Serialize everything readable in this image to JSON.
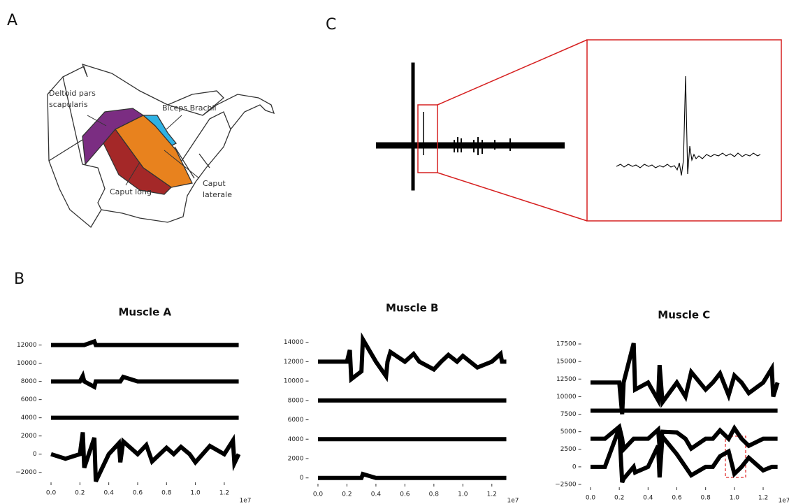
{
  "panel_labels": [
    "A",
    "B",
    "C"
  ],
  "diagram": {
    "labels": [
      {
        "lines": [
          "Deltoid pars",
          "scapularis"
        ]
      },
      {
        "lines": [
          "Biceps Brachii"
        ]
      },
      {
        "lines": [
          "Caput long"
        ]
      },
      {
        "lines": [
          "Caput",
          "laterale"
        ]
      }
    ]
  },
  "chart_data": [
    {
      "type": "line",
      "title": "Muscle A",
      "x": [
        0.0,
        0.1,
        0.2,
        0.22,
        0.23,
        0.3,
        0.31,
        0.4,
        0.47,
        0.48,
        0.5,
        0.6,
        0.66,
        0.7,
        0.8,
        0.85,
        0.9,
        0.96,
        1.0,
        1.05,
        1.1,
        1.2,
        1.26,
        1.27,
        1.3
      ],
      "xlim": [
        -0.065,
        1.365
      ],
      "xticks": [
        {
          "value": 0,
          "label": "0.0"
        },
        0.2,
        0.4,
        0.6,
        0.8,
        {
          "value": 1,
          "label": "1.0"
        },
        1.2
      ],
      "x_offset_label": "1e7",
      "ylim": [
        -3100,
        13200
      ],
      "yticks": [
        {
          "value": -2000,
          "label": "−2000"
        },
        0,
        2000,
        4000,
        6000,
        8000,
        10000,
        12000
      ],
      "series": [
        {
          "color": "#000000",
          "values": [
            12000,
            12000,
            12000,
            12000,
            12000,
            12400,
            12000,
            12000,
            12000,
            12000,
            12000,
            12000,
            12000,
            12000,
            12000,
            12000,
            12000,
            12000,
            12000,
            12000,
            12000,
            12000,
            12000,
            12000,
            12000
          ]
        },
        {
          "color": "#000000",
          "values": [
            8000,
            8000,
            8000,
            8600,
            8000,
            7400,
            8000,
            8000,
            8000,
            8000,
            8500,
            8000,
            8000,
            8000,
            8000,
            8000,
            8000,
            8000,
            8000,
            8000,
            8000,
            8000,
            8000,
            8000,
            8000
          ]
        },
        {
          "color": "#000000",
          "values": [
            4000,
            4000,
            4000,
            4000,
            4000,
            4000,
            4000,
            4000,
            4000,
            4000,
            4000,
            4000,
            4000,
            4000,
            4000,
            4000,
            4000,
            4000,
            4000,
            4000,
            4000,
            4000,
            4000,
            4000,
            4000
          ]
        },
        {
          "color": "#000000",
          "values": [
            0,
            -500,
            0,
            2400,
            -1500,
            1800,
            -3000,
            0,
            1200,
            -900,
            1400,
            0,
            1000,
            -800,
            700,
            0,
            800,
            0,
            -900,
            0,
            900,
            0,
            1500,
            -1000,
            0
          ]
        }
      ]
    },
    {
      "type": "line",
      "title": "Muscle B",
      "x": [
        0.0,
        0.1,
        0.2,
        0.22,
        0.23,
        0.3,
        0.31,
        0.4,
        0.47,
        0.48,
        0.5,
        0.6,
        0.66,
        0.7,
        0.8,
        0.85,
        0.9,
        0.96,
        1.0,
        1.05,
        1.1,
        1.2,
        1.26,
        1.27,
        1.3
      ],
      "xlim": [
        -0.065,
        1.365
      ],
      "xticks": [
        {
          "value": 0,
          "label": "0.0"
        },
        0.2,
        0.4,
        0.6,
        0.8,
        {
          "value": 1,
          "label": "1.0"
        },
        1.2
      ],
      "x_offset_label": "1e7",
      "ylim": [
        -600,
        14700
      ],
      "yticks": [
        0,
        2000,
        4000,
        6000,
        8000,
        10000,
        12000,
        14000
      ],
      "series": [
        {
          "color": "#000000",
          "values": [
            12000,
            12000,
            12000,
            13200,
            10200,
            11000,
            14300,
            12000,
            10500,
            12000,
            13000,
            12000,
            12800,
            12000,
            11200,
            12000,
            12700,
            12000,
            12600,
            12000,
            11400,
            12000,
            12800,
            12000,
            12000
          ]
        },
        {
          "color": "#000000",
          "values": [
            8000,
            8000,
            8000,
            8000,
            8000,
            8000,
            8000,
            8000,
            8000,
            8000,
            8000,
            8000,
            8000,
            8000,
            8000,
            8000,
            8000,
            8000,
            8000,
            8000,
            8000,
            8000,
            8000,
            8000,
            8000
          ]
        },
        {
          "color": "#000000",
          "values": [
            4000,
            4000,
            4000,
            4000,
            4000,
            4000,
            4000,
            4000,
            4000,
            4000,
            4000,
            4000,
            4000,
            4000,
            4000,
            4000,
            4000,
            4000,
            4000,
            4000,
            4000,
            4000,
            4000,
            4000,
            4000
          ]
        },
        {
          "color": "#000000",
          "values": [
            0,
            0,
            0,
            0,
            0,
            0,
            400,
            0,
            0,
            0,
            0,
            0,
            0,
            0,
            0,
            0,
            0,
            0,
            0,
            0,
            0,
            0,
            0,
            0,
            0
          ]
        }
      ]
    },
    {
      "type": "line",
      "title": "Muscle C",
      "x": [
        0.0,
        0.1,
        0.2,
        0.22,
        0.23,
        0.3,
        0.31,
        0.4,
        0.47,
        0.48,
        0.5,
        0.6,
        0.66,
        0.7,
        0.8,
        0.85,
        0.9,
        0.96,
        1.0,
        1.05,
        1.1,
        1.2,
        1.26,
        1.27,
        1.3
      ],
      "xlim": [
        -0.065,
        1.365
      ],
      "xticks": [
        {
          "value": 0,
          "label": "0.0"
        },
        0.2,
        0.4,
        0.6,
        0.8,
        {
          "value": 1,
          "label": "1.0"
        },
        1.2
      ],
      "x_offset_label": "1e7",
      "ylim": [
        -2900,
        18300
      ],
      "yticks": [
        {
          "value": -2500,
          "label": "−2500"
        },
        0,
        2500,
        5000,
        7500,
        10000,
        12500,
        15000,
        17500
      ],
      "series": [
        {
          "color": "#000000",
          "values": [
            12000,
            12000,
            12000,
            7500,
            12000,
            17600,
            11000,
            12000,
            9500,
            14500,
            9200,
            12000,
            10000,
            13500,
            11000,
            12000,
            13300,
            10200,
            13000,
            12000,
            10500,
            12000,
            14000,
            10000,
            12000
          ]
        },
        {
          "color": "#000000",
          "values": [
            8000,
            8000,
            8000,
            8000,
            8000,
            8000,
            8000,
            8000,
            8000,
            8000,
            8000,
            8000,
            8000,
            8000,
            8000,
            8000,
            8000,
            8000,
            8000,
            8000,
            8000,
            8000,
            8000,
            8000,
            8000
          ]
        },
        {
          "color": "#000000",
          "values": [
            4000,
            4000,
            5700,
            4000,
            2500,
            4000,
            4000,
            4000,
            5300,
            2900,
            5000,
            4900,
            4000,
            2600,
            4000,
            4000,
            5200,
            4000,
            5500,
            4000,
            3000,
            4000,
            4000,
            4000,
            4000
          ]
        },
        {
          "color": "#000000",
          "values": [
            0,
            0,
            5500,
            -2200,
            -1700,
            0,
            -800,
            0,
            3000,
            -1500,
            4300,
            1800,
            0,
            -1200,
            0,
            0,
            1500,
            2200,
            -1000,
            0,
            1300,
            -500,
            0,
            0,
            0
          ]
        }
      ]
    }
  ]
}
